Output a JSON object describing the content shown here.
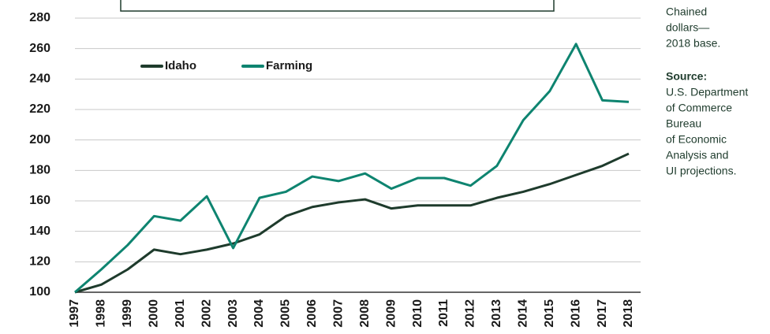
{
  "chart_data": {
    "type": "line",
    "categories": [
      "1997",
      "1998",
      "1999",
      "2000",
      "2001",
      "2002",
      "2003",
      "2004",
      "2005",
      "2006",
      "2007",
      "2008",
      "2009",
      "2010",
      "2011",
      "2012",
      "2013",
      "2014",
      "2015",
      "2016",
      "2017",
      "2018"
    ],
    "series": [
      {
        "name": "Idaho",
        "color": "#1e3b2c",
        "values": [
          100,
          105,
          115,
          128,
          125,
          128,
          132,
          138,
          150,
          156,
          159,
          161,
          155,
          157,
          157,
          157,
          162,
          166,
          171,
          177,
          183,
          191
        ]
      },
      {
        "name": "Farming",
        "color": "#0e8470",
        "values": [
          100,
          115,
          131,
          150,
          147,
          163,
          129,
          162,
          166,
          176,
          173,
          178,
          168,
          175,
          175,
          170,
          183,
          213,
          232,
          263,
          226,
          225
        ]
      }
    ],
    "ylim": [
      100,
      280
    ],
    "yticks": [
      100,
      120,
      140,
      160,
      180,
      200,
      220,
      240,
      260,
      280
    ],
    "grid": true,
    "legend": "upper left",
    "annotations": {
      "note": [
        "Chained",
        "dollars—",
        "2018 base."
      ],
      "source_title": "Source:",
      "source": [
        "U.S. Department",
        "of Commerce",
        "Bureau",
        "of Economic",
        "Analysis and",
        "UI projections."
      ]
    }
  }
}
